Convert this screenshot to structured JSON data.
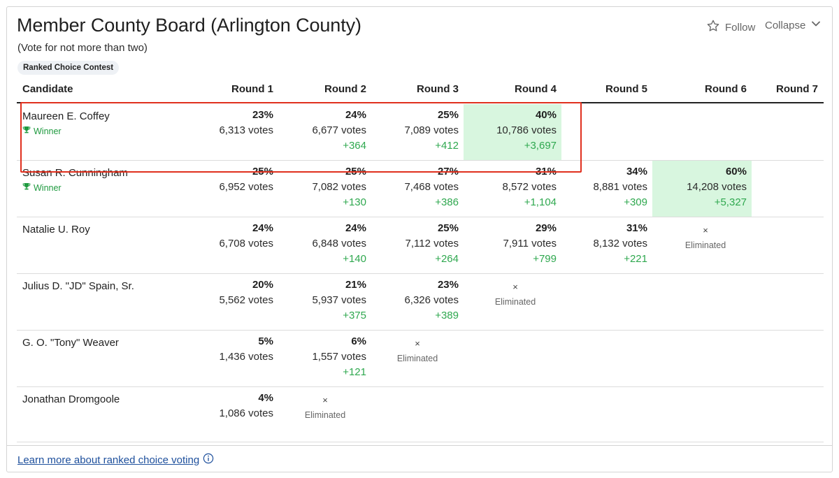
{
  "contest": {
    "title": "Member County Board (Arlington County)",
    "subtitle": "(Vote for not more than two)",
    "badge": "Ranked Choice Contest",
    "follow_label": "Follow",
    "collapse_label": "Collapse"
  },
  "table": {
    "headers": [
      "Candidate",
      "Round 1",
      "Round 2",
      "Round 3",
      "Round 4",
      "Round 5",
      "Round 6",
      "Round 7"
    ],
    "winner_label": "Winner",
    "eliminated_label": "Eliminated",
    "eliminated_mark": "×",
    "highlight_color": "#d8f6df",
    "rows": [
      {
        "name": "Maureen E. Coffey",
        "winner": true,
        "rounds": [
          {
            "pct": "23%",
            "votes": "6,313 votes",
            "delta": ""
          },
          {
            "pct": "24%",
            "votes": "6,677 votes",
            "delta": "+364"
          },
          {
            "pct": "25%",
            "votes": "7,089 votes",
            "delta": "+412"
          },
          {
            "pct": "40%",
            "votes": "10,786 votes",
            "delta": "+3,697",
            "highlight": true
          }
        ]
      },
      {
        "name": "Susan R. Cunningham",
        "winner": true,
        "rounds": [
          {
            "pct": "25%",
            "votes": "6,952 votes",
            "delta": ""
          },
          {
            "pct": "25%",
            "votes": "7,082 votes",
            "delta": "+130"
          },
          {
            "pct": "27%",
            "votes": "7,468 votes",
            "delta": "+386"
          },
          {
            "pct": "31%",
            "votes": "8,572 votes",
            "delta": "+1,104"
          },
          {
            "pct": "34%",
            "votes": "8,881 votes",
            "delta": "+309"
          },
          {
            "pct": "60%",
            "votes": "14,208 votes",
            "delta": "+5,327",
            "highlight": true
          }
        ]
      },
      {
        "name": "Natalie U. Roy",
        "winner": false,
        "eliminated_round": 6,
        "rounds": [
          {
            "pct": "24%",
            "votes": "6,708 votes",
            "delta": ""
          },
          {
            "pct": "24%",
            "votes": "6,848 votes",
            "delta": "+140"
          },
          {
            "pct": "25%",
            "votes": "7,112 votes",
            "delta": "+264"
          },
          {
            "pct": "29%",
            "votes": "7,911 votes",
            "delta": "+799"
          },
          {
            "pct": "31%",
            "votes": "8,132 votes",
            "delta": "+221"
          }
        ]
      },
      {
        "name": "Julius D. \"JD\" Spain, Sr.",
        "winner": false,
        "eliminated_round": 4,
        "rounds": [
          {
            "pct": "20%",
            "votes": "5,562 votes",
            "delta": ""
          },
          {
            "pct": "21%",
            "votes": "5,937 votes",
            "delta": "+375"
          },
          {
            "pct": "23%",
            "votes": "6,326 votes",
            "delta": "+389"
          }
        ]
      },
      {
        "name": "G. O. \"Tony\" Weaver",
        "winner": false,
        "eliminated_round": 3,
        "rounds": [
          {
            "pct": "5%",
            "votes": "1,436 votes",
            "delta": ""
          },
          {
            "pct": "6%",
            "votes": "1,557 votes",
            "delta": "+121"
          }
        ]
      },
      {
        "name": "Jonathan Dromgoole",
        "winner": false,
        "eliminated_round": 2,
        "rounds": [
          {
            "pct": "4%",
            "votes": "1,086 votes",
            "delta": ""
          }
        ]
      }
    ]
  },
  "footer": {
    "learn_more": "Learn more about ranked choice voting"
  }
}
